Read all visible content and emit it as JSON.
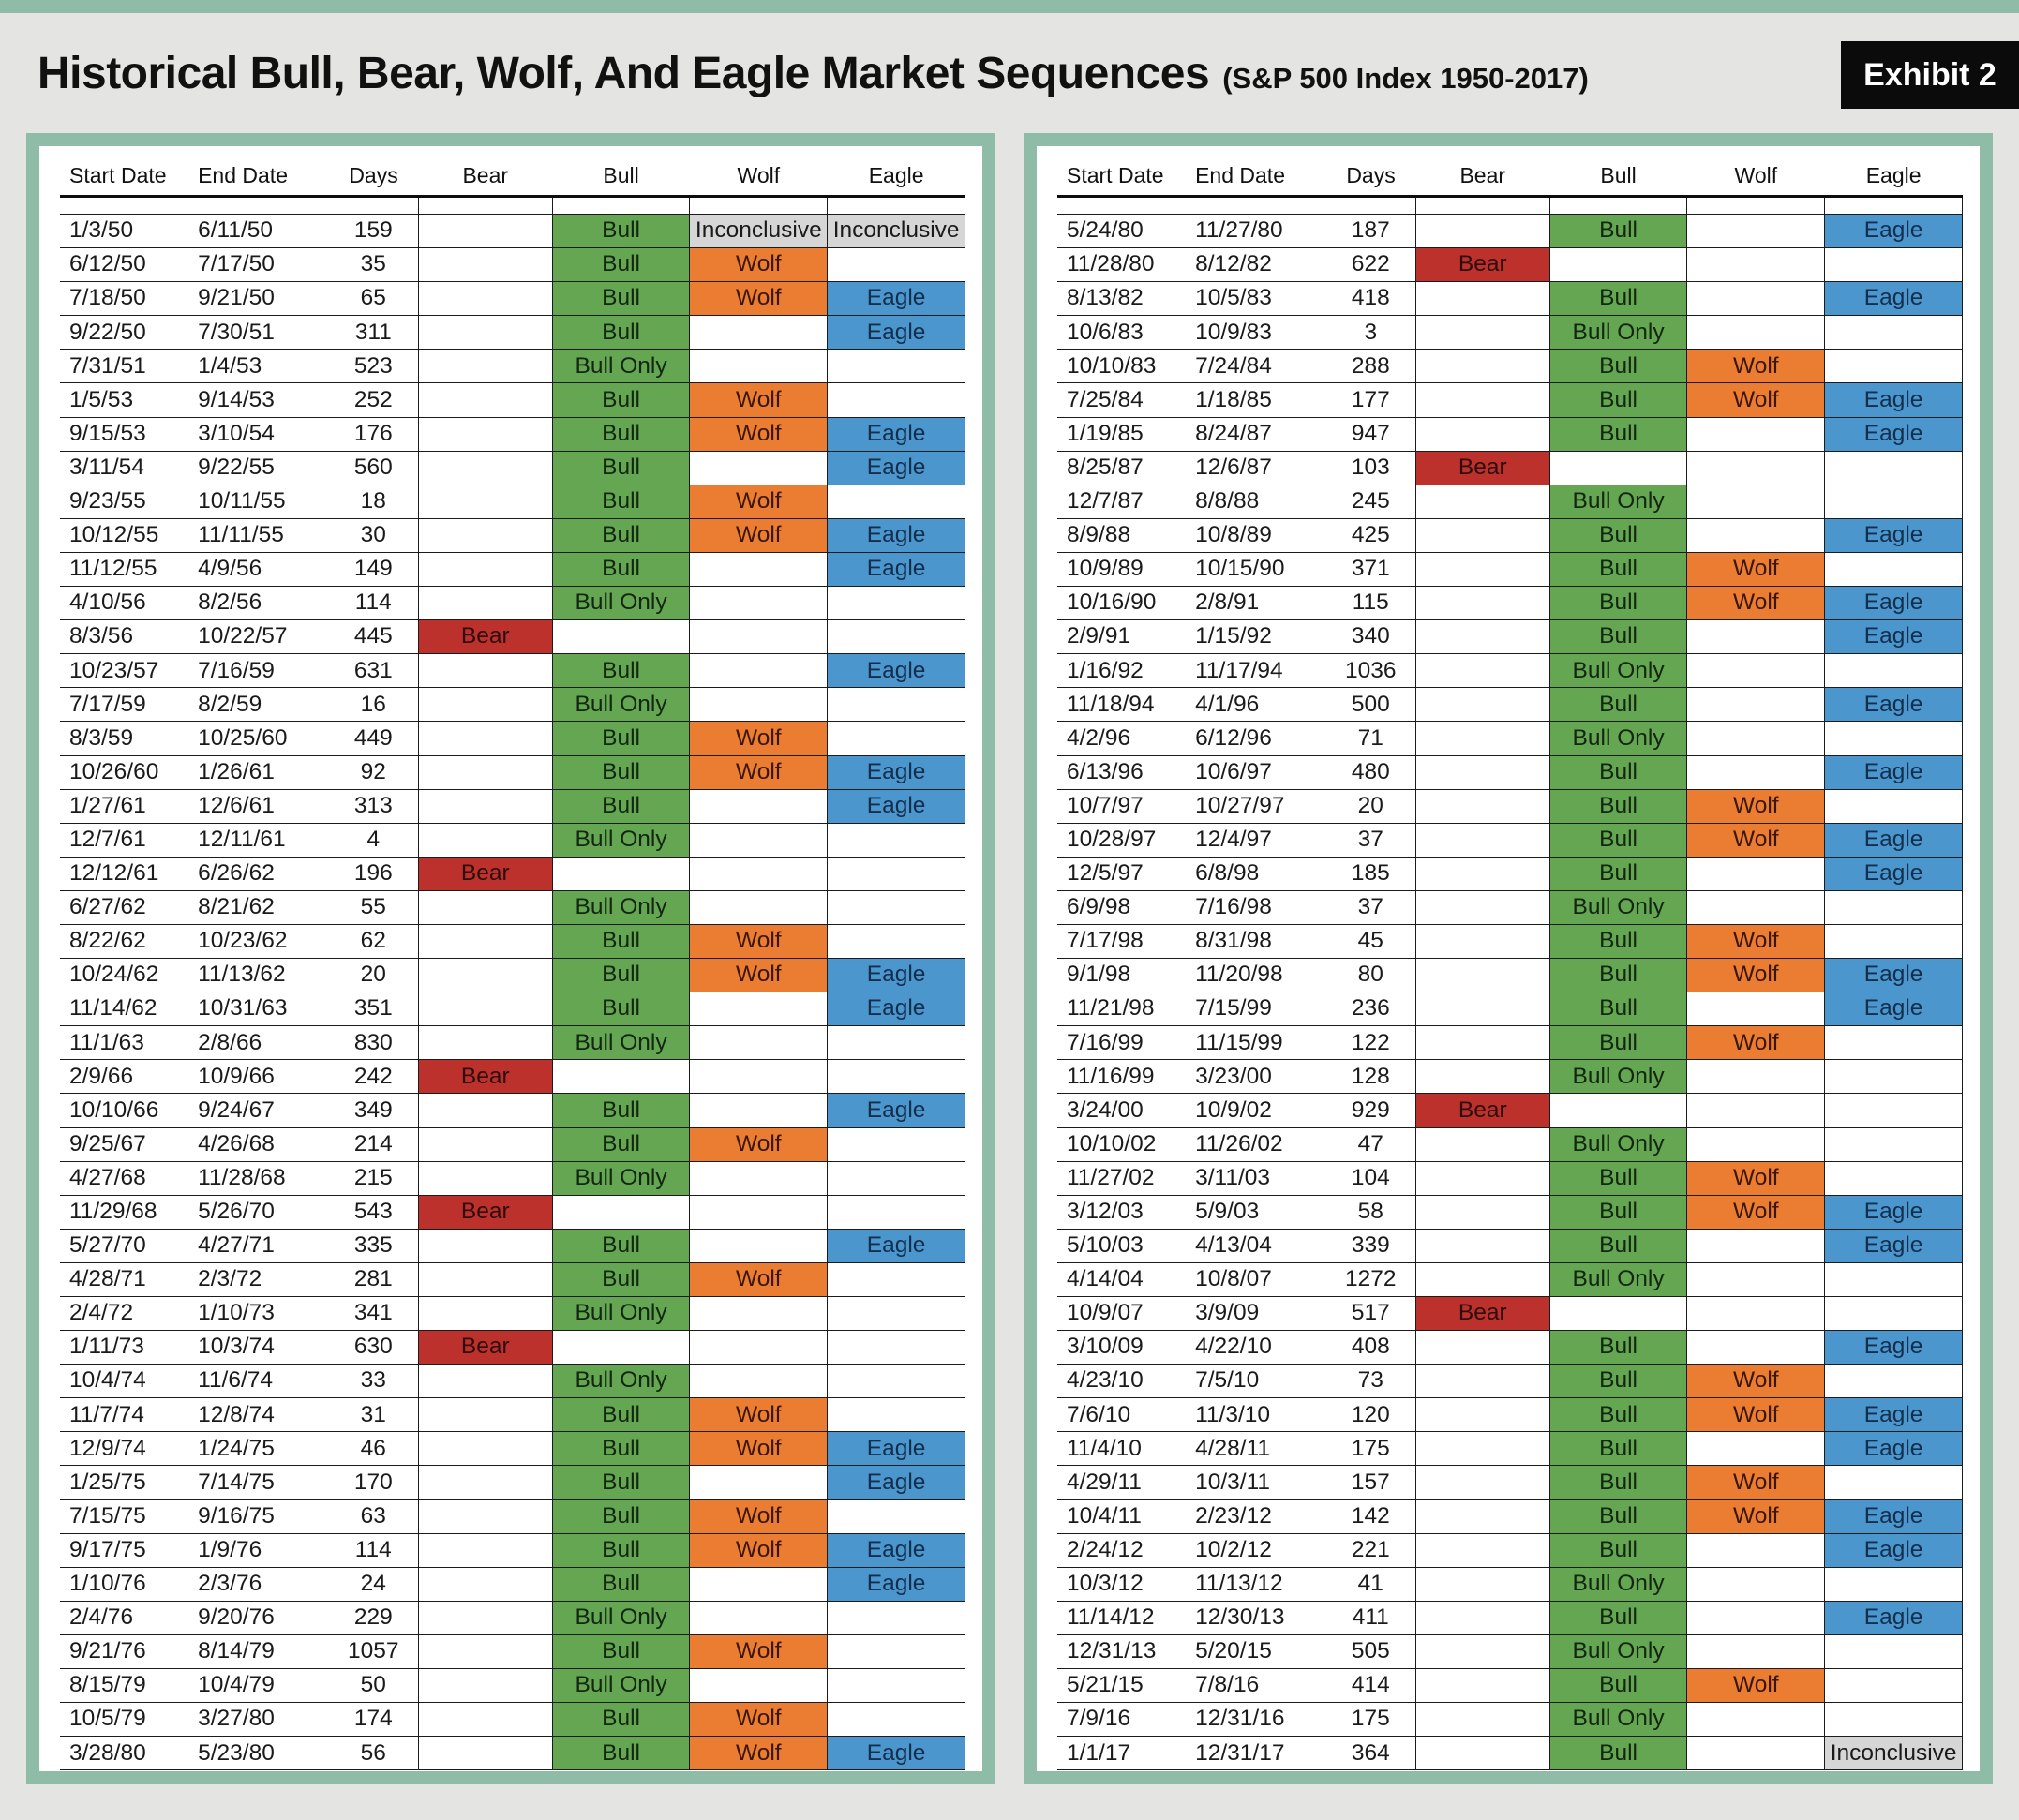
{
  "page": {
    "title": "Historical Bull, Bear, Wolf, And Eagle Market Sequences",
    "subtitle": "(S&P 500 Index 1950-2017)",
    "badge": "Exhibit 2"
  },
  "colors": {
    "frame": "#8FBCA7",
    "page_bg": "#E4E4E2",
    "badge_bg": "#0B0B0B",
    "bear": "#BD312D",
    "bull": "#65A653",
    "wolf": "#EA7D31",
    "eagle": "#4B96CC",
    "inconclusive": "#D6D6D6"
  },
  "columns": [
    "Start Date",
    "End Date",
    "Days",
    "Bear",
    "Bull",
    "Wolf",
    "Eagle"
  ],
  "tables": {
    "left": {
      "rows": [
        [
          "1/3/50",
          "6/11/50",
          "159",
          "",
          "Bull",
          "Inconclusive",
          "Inconclusive"
        ],
        [
          "6/12/50",
          "7/17/50",
          "35",
          "",
          "Bull",
          "Wolf",
          ""
        ],
        [
          "7/18/50",
          "9/21/50",
          "65",
          "",
          "Bull",
          "Wolf",
          "Eagle"
        ],
        [
          "9/22/50",
          "7/30/51",
          "311",
          "",
          "Bull",
          "",
          "Eagle"
        ],
        [
          "7/31/51",
          "1/4/53",
          "523",
          "",
          "Bull Only",
          "",
          ""
        ],
        [
          "1/5/53",
          "9/14/53",
          "252",
          "",
          "Bull",
          "Wolf",
          ""
        ],
        [
          "9/15/53",
          "3/10/54",
          "176",
          "",
          "Bull",
          "Wolf",
          "Eagle"
        ],
        [
          "3/11/54",
          "9/22/55",
          "560",
          "",
          "Bull",
          "",
          "Eagle"
        ],
        [
          "9/23/55",
          "10/11/55",
          "18",
          "",
          "Bull",
          "Wolf",
          ""
        ],
        [
          "10/12/55",
          "11/11/55",
          "30",
          "",
          "Bull",
          "Wolf",
          "Eagle"
        ],
        [
          "11/12/55",
          "4/9/56",
          "149",
          "",
          "Bull",
          "",
          "Eagle"
        ],
        [
          "4/10/56",
          "8/2/56",
          "114",
          "",
          "Bull Only",
          "",
          ""
        ],
        [
          "8/3/56",
          "10/22/57",
          "445",
          "Bear",
          "",
          "",
          ""
        ],
        [
          "10/23/57",
          "7/16/59",
          "631",
          "",
          "Bull",
          "",
          "Eagle"
        ],
        [
          "7/17/59",
          "8/2/59",
          "16",
          "",
          "Bull Only",
          "",
          ""
        ],
        [
          "8/3/59",
          "10/25/60",
          "449",
          "",
          "Bull",
          "Wolf",
          ""
        ],
        [
          "10/26/60",
          "1/26/61",
          "92",
          "",
          "Bull",
          "Wolf",
          "Eagle"
        ],
        [
          "1/27/61",
          "12/6/61",
          "313",
          "",
          "Bull",
          "",
          "Eagle"
        ],
        [
          "12/7/61",
          "12/11/61",
          "4",
          "",
          "Bull Only",
          "",
          ""
        ],
        [
          "12/12/61",
          "6/26/62",
          "196",
          "Bear",
          "",
          "",
          ""
        ],
        [
          "6/27/62",
          "8/21/62",
          "55",
          "",
          "Bull Only",
          "",
          ""
        ],
        [
          "8/22/62",
          "10/23/62",
          "62",
          "",
          "Bull",
          "Wolf",
          ""
        ],
        [
          "10/24/62",
          "11/13/62",
          "20",
          "",
          "Bull",
          "Wolf",
          "Eagle"
        ],
        [
          "11/14/62",
          "10/31/63",
          "351",
          "",
          "Bull",
          "",
          "Eagle"
        ],
        [
          "11/1/63",
          "2/8/66",
          "830",
          "",
          "Bull Only",
          "",
          ""
        ],
        [
          "2/9/66",
          "10/9/66",
          "242",
          "Bear",
          "",
          "",
          ""
        ],
        [
          "10/10/66",
          "9/24/67",
          "349",
          "",
          "Bull",
          "",
          "Eagle"
        ],
        [
          "9/25/67",
          "4/26/68",
          "214",
          "",
          "Bull",
          "Wolf",
          ""
        ],
        [
          "4/27/68",
          "11/28/68",
          "215",
          "",
          "Bull Only",
          "",
          ""
        ],
        [
          "11/29/68",
          "5/26/70",
          "543",
          "Bear",
          "",
          "",
          ""
        ],
        [
          "5/27/70",
          "4/27/71",
          "335",
          "",
          "Bull",
          "",
          "Eagle"
        ],
        [
          "4/28/71",
          "2/3/72",
          "281",
          "",
          "Bull",
          "Wolf",
          ""
        ],
        [
          "2/4/72",
          "1/10/73",
          "341",
          "",
          "Bull Only",
          "",
          ""
        ],
        [
          "1/11/73",
          "10/3/74",
          "630",
          "Bear",
          "",
          "",
          ""
        ],
        [
          "10/4/74",
          "11/6/74",
          "33",
          "",
          "Bull Only",
          "",
          ""
        ],
        [
          "11/7/74",
          "12/8/74",
          "31",
          "",
          "Bull",
          "Wolf",
          ""
        ],
        [
          "12/9/74",
          "1/24/75",
          "46",
          "",
          "Bull",
          "Wolf",
          "Eagle"
        ],
        [
          "1/25/75",
          "7/14/75",
          "170",
          "",
          "Bull",
          "",
          "Eagle"
        ],
        [
          "7/15/75",
          "9/16/75",
          "63",
          "",
          "Bull",
          "Wolf",
          ""
        ],
        [
          "9/17/75",
          "1/9/76",
          "114",
          "",
          "Bull",
          "Wolf",
          "Eagle"
        ],
        [
          "1/10/76",
          "2/3/76",
          "24",
          "",
          "Bull",
          "",
          "Eagle"
        ],
        [
          "2/4/76",
          "9/20/76",
          "229",
          "",
          "Bull Only",
          "",
          ""
        ],
        [
          "9/21/76",
          "8/14/79",
          "1057",
          "",
          "Bull",
          "Wolf",
          ""
        ],
        [
          "8/15/79",
          "10/4/79",
          "50",
          "",
          "Bull Only",
          "",
          ""
        ],
        [
          "10/5/79",
          "3/27/80",
          "174",
          "",
          "Bull",
          "Wolf",
          ""
        ],
        [
          "3/28/80",
          "5/23/80",
          "56",
          "",
          "Bull",
          "Wolf",
          "Eagle"
        ]
      ]
    },
    "right": {
      "rows": [
        [
          "5/24/80",
          "11/27/80",
          "187",
          "",
          "Bull",
          "",
          "Eagle"
        ],
        [
          "11/28/80",
          "8/12/82",
          "622",
          "Bear",
          "",
          "",
          ""
        ],
        [
          "8/13/82",
          "10/5/83",
          "418",
          "",
          "Bull",
          "",
          "Eagle"
        ],
        [
          "10/6/83",
          "10/9/83",
          "3",
          "",
          "Bull Only",
          "",
          ""
        ],
        [
          "10/10/83",
          "7/24/84",
          "288",
          "",
          "Bull",
          "Wolf",
          ""
        ],
        [
          "7/25/84",
          "1/18/85",
          "177",
          "",
          "Bull",
          "Wolf",
          "Eagle"
        ],
        [
          "1/19/85",
          "8/24/87",
          "947",
          "",
          "Bull",
          "",
          "Eagle"
        ],
        [
          "8/25/87",
          "12/6/87",
          "103",
          "Bear",
          "",
          "",
          ""
        ],
        [
          "12/7/87",
          "8/8/88",
          "245",
          "",
          "Bull Only",
          "",
          ""
        ],
        [
          "8/9/88",
          "10/8/89",
          "425",
          "",
          "Bull",
          "",
          "Eagle"
        ],
        [
          "10/9/89",
          "10/15/90",
          "371",
          "",
          "Bull",
          "Wolf",
          ""
        ],
        [
          "10/16/90",
          "2/8/91",
          "115",
          "",
          "Bull",
          "Wolf",
          "Eagle"
        ],
        [
          "2/9/91",
          "1/15/92",
          "340",
          "",
          "Bull",
          "",
          "Eagle"
        ],
        [
          "1/16/92",
          "11/17/94",
          "1036",
          "",
          "Bull Only",
          "",
          ""
        ],
        [
          "11/18/94",
          "4/1/96",
          "500",
          "",
          "Bull",
          "",
          "Eagle"
        ],
        [
          "4/2/96",
          "6/12/96",
          "71",
          "",
          "Bull Only",
          "",
          ""
        ],
        [
          "6/13/96",
          "10/6/97",
          "480",
          "",
          "Bull",
          "",
          "Eagle"
        ],
        [
          "10/7/97",
          "10/27/97",
          "20",
          "",
          "Bull",
          "Wolf",
          ""
        ],
        [
          "10/28/97",
          "12/4/97",
          "37",
          "",
          "Bull",
          "Wolf",
          "Eagle"
        ],
        [
          "12/5/97",
          "6/8/98",
          "185",
          "",
          "Bull",
          "",
          "Eagle"
        ],
        [
          "6/9/98",
          "7/16/98",
          "37",
          "",
          "Bull Only",
          "",
          ""
        ],
        [
          "7/17/98",
          "8/31/98",
          "45",
          "",
          "Bull",
          "Wolf",
          ""
        ],
        [
          "9/1/98",
          "11/20/98",
          "80",
          "",
          "Bull",
          "Wolf",
          "Eagle"
        ],
        [
          "11/21/98",
          "7/15/99",
          "236",
          "",
          "Bull",
          "",
          "Eagle"
        ],
        [
          "7/16/99",
          "11/15/99",
          "122",
          "",
          "Bull",
          "Wolf",
          ""
        ],
        [
          "11/16/99",
          "3/23/00",
          "128",
          "",
          "Bull Only",
          "",
          ""
        ],
        [
          "3/24/00",
          "10/9/02",
          "929",
          "Bear",
          "",
          "",
          ""
        ],
        [
          "10/10/02",
          "11/26/02",
          "47",
          "",
          "Bull Only",
          "",
          ""
        ],
        [
          "11/27/02",
          "3/11/03",
          "104",
          "",
          "Bull",
          "Wolf",
          ""
        ],
        [
          "3/12/03",
          "5/9/03",
          "58",
          "",
          "Bull",
          "Wolf",
          "Eagle"
        ],
        [
          "5/10/03",
          "4/13/04",
          "339",
          "",
          "Bull",
          "",
          "Eagle"
        ],
        [
          "4/14/04",
          "10/8/07",
          "1272",
          "",
          "Bull Only",
          "",
          ""
        ],
        [
          "10/9/07",
          "3/9/09",
          "517",
          "Bear",
          "",
          "",
          ""
        ],
        [
          "3/10/09",
          "4/22/10",
          "408",
          "",
          "Bull",
          "",
          "Eagle"
        ],
        [
          "4/23/10",
          "7/5/10",
          "73",
          "",
          "Bull",
          "Wolf",
          ""
        ],
        [
          "7/6/10",
          "11/3/10",
          "120",
          "",
          "Bull",
          "Wolf",
          "Eagle"
        ],
        [
          "11/4/10",
          "4/28/11",
          "175",
          "",
          "Bull",
          "",
          "Eagle"
        ],
        [
          "4/29/11",
          "10/3/11",
          "157",
          "",
          "Bull",
          "Wolf",
          ""
        ],
        [
          "10/4/11",
          "2/23/12",
          "142",
          "",
          "Bull",
          "Wolf",
          "Eagle"
        ],
        [
          "2/24/12",
          "10/2/12",
          "221",
          "",
          "Bull",
          "",
          "Eagle"
        ],
        [
          "10/3/12",
          "11/13/12",
          "41",
          "",
          "Bull Only",
          "",
          ""
        ],
        [
          "11/14/12",
          "12/30/13",
          "411",
          "",
          "Bull",
          "",
          "Eagle"
        ],
        [
          "12/31/13",
          "5/20/15",
          "505",
          "",
          "Bull Only",
          "",
          ""
        ],
        [
          "5/21/15",
          "7/8/16",
          "414",
          "",
          "Bull",
          "Wolf",
          ""
        ],
        [
          "7/9/16",
          "12/31/16",
          "175",
          "",
          "Bull Only",
          "",
          ""
        ],
        [
          "1/1/17",
          "12/31/17",
          "364",
          "",
          "Bull",
          "",
          "Inconclusive"
        ]
      ]
    }
  }
}
